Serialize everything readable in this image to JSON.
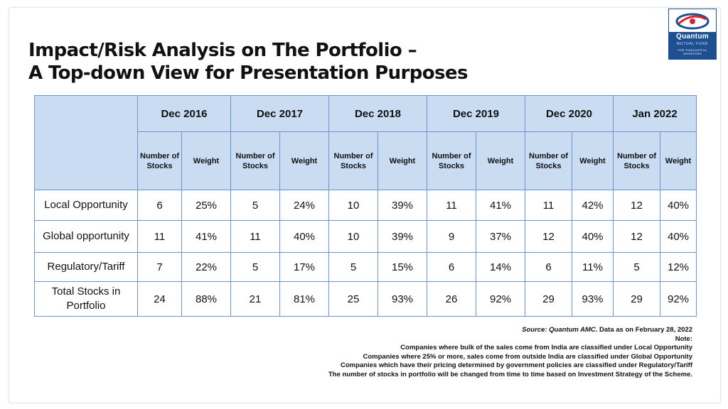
{
  "title": {
    "line1": "Impact/Risk Analysis on The Portfolio –",
    "line2": "A Top-down View for Presentation Purposes"
  },
  "logo": {
    "name": "Quantum",
    "sub": "MUTUAL FUND",
    "tag_line1": "FOR THOUGHTFUL",
    "tag_line2": "INVESTORS",
    "colors": {
      "primary": "#1d4f91",
      "accent": "#d9232e"
    }
  },
  "table": {
    "periods": [
      "Dec 2016",
      "Dec 2017",
      "Dec 2018",
      "Dec 2019",
      "Dec 2020",
      "Jan 2022"
    ],
    "subheaders": {
      "p0": [
        "Number of Stocks",
        "Weight"
      ],
      "p1": [
        "Number of Stocks",
        "Weight"
      ],
      "p2": [
        "Number of Stocks",
        "Weight"
      ],
      "p3": [
        "Number of Stocks",
        "Weight"
      ],
      "p4": [
        "Number of Stocks",
        "Weight"
      ],
      "p5": [
        "Number of Stocks",
        "Weight"
      ]
    },
    "rows": [
      {
        "label": "Local Opportunity",
        "values": [
          "6",
          "25%",
          "5",
          "24%",
          "10",
          "39%",
          "11",
          "41%",
          "11",
          "42%",
          "12",
          "40%"
        ]
      },
      {
        "label": "Global opportunity",
        "values": [
          "11",
          "41%",
          "11",
          "40%",
          "10",
          "39%",
          "9",
          "37%",
          "12",
          "40%",
          "12",
          "40%"
        ]
      },
      {
        "label": "Regulatory/Tariff",
        "values": [
          "7",
          "22%",
          "5",
          "17%",
          "5",
          "15%",
          "6",
          "14%",
          "6",
          "11%",
          "5",
          "12%"
        ]
      },
      {
        "label": "Total Stocks in Portfolio",
        "values": [
          "24",
          "88%",
          "21",
          "81%",
          "25",
          "93%",
          "26",
          "92%",
          "29",
          "93%",
          "29",
          "92%"
        ]
      }
    ],
    "colors": {
      "header_bg": "#c9dcf2",
      "border": "#6f92c9"
    }
  },
  "notes": {
    "source_label": "Source: Quantum AMC.",
    "source_date": "Data as on February 28, 2022",
    "note_label": "Note:",
    "lines": [
      "Companies where bulk of the sales come from India are classified under Local Opportunity",
      "Companies where 25% or more, sales come from outside India are classified under Global Opportunity",
      "Companies which have their pricing determined by government policies are classified under Regulatory/Tariff",
      "The number of stocks in portfolio will be changed from time to time based on Investment Strategy of the Scheme."
    ]
  }
}
